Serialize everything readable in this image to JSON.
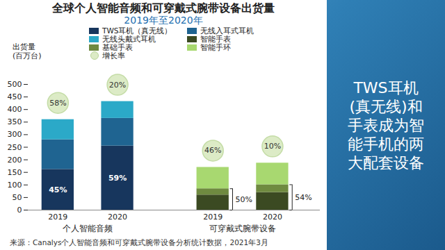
{
  "chart_data": {
    "type": "bar",
    "stacked": true,
    "title": "全球个人智能音频和可穿戴式腕带设备出货量",
    "subtitle": "2019年至2020年",
    "ylabel": "出货量\n(百万台)",
    "categories": [
      "2019",
      "2020",
      "2019",
      "2020"
    ],
    "groups": [
      "个人智能音频",
      "个人智能音频",
      "可穿戴式腕带设备",
      "可穿戴式腕带设备"
    ],
    "ylim": [
      0,
      500
    ],
    "yticks": [
      0,
      50,
      100,
      150,
      200,
      250,
      300,
      350,
      400,
      450,
      500
    ],
    "grid": false,
    "legend": "top",
    "series": [
      {
        "name": "TWS耳机（真无线）",
        "color": "#17365d",
        "values": [
          162,
          255,
          null,
          null
        ],
        "share": [
          45,
          59,
          null,
          null
        ],
        "share_labels": [
          "45%",
          "59%",
          null,
          null
        ]
      },
      {
        "name": "无线入耳式耳机",
        "color": "#1f6491",
        "values": [
          118,
          110,
          null,
          null
        ]
      },
      {
        "name": "无线头戴式耳机",
        "color": "#2ba9c8",
        "values": [
          80,
          67,
          null,
          null
        ]
      },
      {
        "name": "智能手表",
        "color": "#3b4a22",
        "values": [
          null,
          null,
          60,
          70
        ]
      },
      {
        "name": "基础手表",
        "color": "#6f8a40",
        "values": [
          null,
          null,
          25,
          31
        ]
      },
      {
        "name": "智能手环",
        "color": "#a8d870",
        "values": [
          null,
          null,
          85,
          86
        ]
      }
    ],
    "growth": {
      "name": "增长率",
      "color": "#dcebc6",
      "values": [
        58,
        20,
        46,
        10
      ],
      "value_labels": [
        "58%",
        "20%",
        "46%",
        "10%"
      ]
    },
    "watch_share": {
      "values": [
        null,
        null,
        50,
        54
      ],
      "value_labels": [
        null,
        null,
        "50%",
        "54%"
      ]
    },
    "source": "来源：Canalys个人智能音频和可穿戴式腕带设备分析统计数据，2021年3月",
    "side_text": "TWS耳机(真无线)和手表成为智能手机的两大配套设备"
  }
}
